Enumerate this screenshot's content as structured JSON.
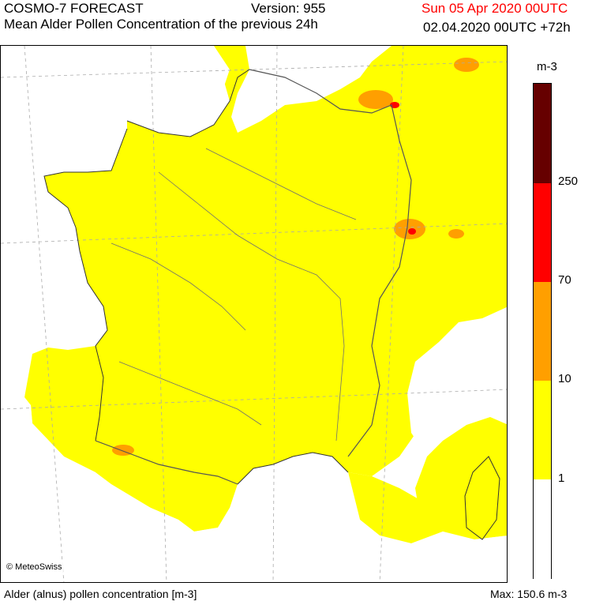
{
  "header": {
    "title": "COSMO-7 FORECAST",
    "version": "Version: 955",
    "valid_time": "Sun 05 Apr 2020 00UTC",
    "subtitle": "Mean Alder Pollen Concentration of the previous 24h",
    "run_time": "02.04.2020 00UTC +72h",
    "valid_color": "#ff0000"
  },
  "map": {
    "credit": "© MeteoSwiss",
    "region": "France",
    "grid_lines": true,
    "levels_shown": [
      "1-10",
      "10-70",
      "70-250"
    ]
  },
  "legend": {
    "unit": "m-3",
    "bands": [
      {
        "range": "0-1",
        "color": "#ffffff"
      },
      {
        "range": "1-10",
        "color": "#ffff00"
      },
      {
        "range": "10-70",
        "color": "#ff9f00"
      },
      {
        "range": "70-250",
        "color": "#ff0000"
      },
      {
        "range": ">250",
        "color": "#660000"
      }
    ],
    "ticks": [
      "1",
      "10",
      "70",
      "250"
    ]
  },
  "footer": {
    "description": "Alder (alnus) pollen concentration [m-3]",
    "max": "Max:  150.6 m-3"
  }
}
